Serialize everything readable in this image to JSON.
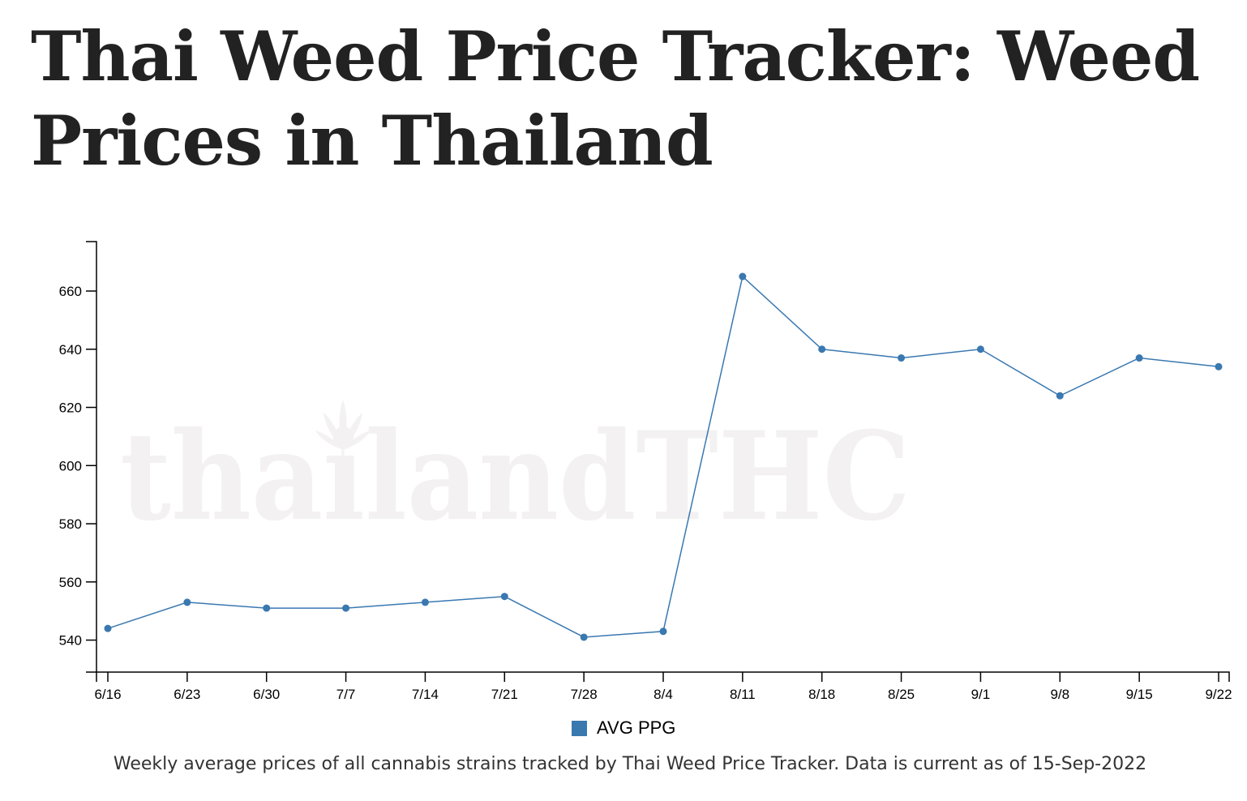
{
  "page": {
    "title": "Thai Weed Price Tracker: Weed Prices in Thailand",
    "caption": "Weekly average prices of all cannabis strains tracked by Thai Weed Price Tracker. Data is current as of 15-Sep-2022",
    "watermark": "thailandTHC"
  },
  "chart_data": {
    "type": "line",
    "categories": [
      "6/16",
      "6/23",
      "6/30",
      "7/7",
      "7/14",
      "7/21",
      "7/28",
      "8/4",
      "8/11",
      "8/18",
      "8/25",
      "9/1",
      "9/8",
      "9/15",
      "9/22"
    ],
    "series": [
      {
        "name": "AVG PPG",
        "color": "#3a78b0",
        "values": [
          544,
          553,
          551,
          551,
          553,
          555,
          541,
          543,
          665,
          640,
          637,
          640,
          624,
          637,
          634
        ]
      }
    ],
    "yticks": [
      540,
      560,
      580,
      600,
      620,
      640,
      660
    ],
    "ylim": [
      529,
      677
    ],
    "xlabel": "",
    "ylabel": "",
    "grid": false,
    "legend": "bottom-center"
  }
}
